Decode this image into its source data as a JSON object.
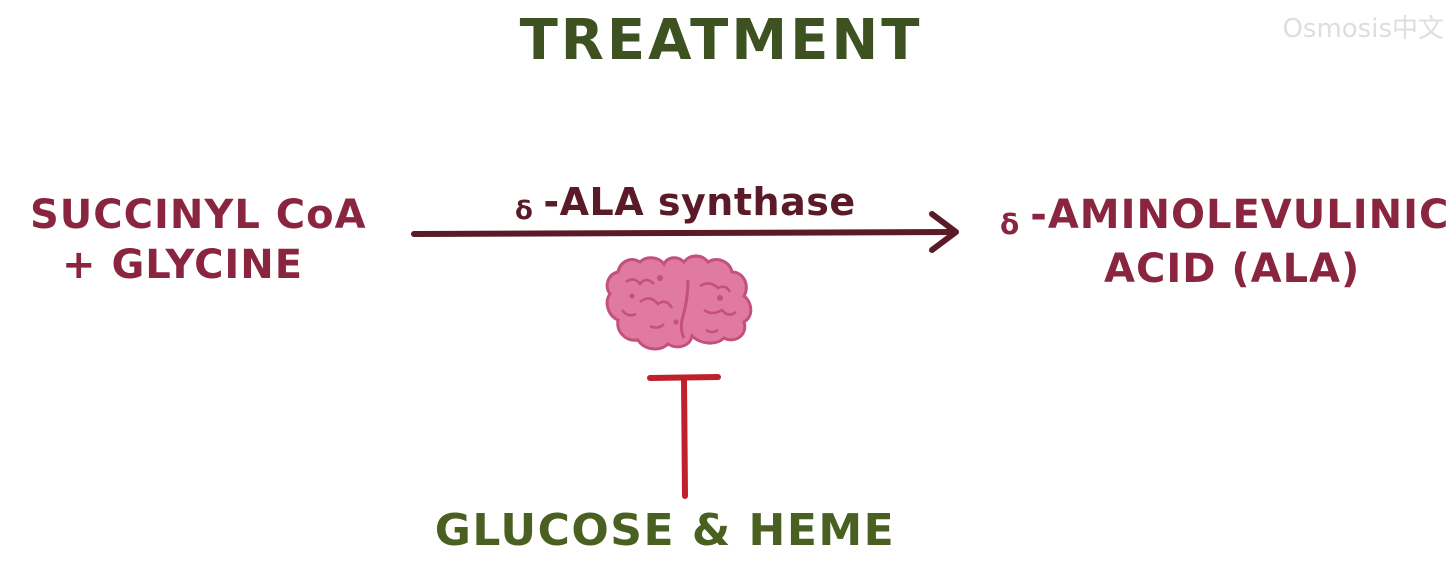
{
  "title": "TREATMENT",
  "watermark": "Osmosis中文",
  "substrate": {
    "line1": "SUCCINYL CoA",
    "line2": "+ GLYCINE"
  },
  "enzyme": {
    "greek": "δ",
    "label": "-ALA synthase"
  },
  "product": {
    "greek": "δ",
    "line1": "-AMINOLEVULINIC",
    "line2": "ACID (ALA)"
  },
  "inhibitor": "GLUCOSE & HEME",
  "colors": {
    "title": "#3d5220",
    "metabolite": "#8a2540",
    "arrow": "#5a1a28",
    "enzyme_blob": "#e07aa0",
    "enzyme_blob_dark": "#c4507c",
    "inhibition_bar": "#c0202a",
    "inhibitor_text": "#4a6020"
  }
}
